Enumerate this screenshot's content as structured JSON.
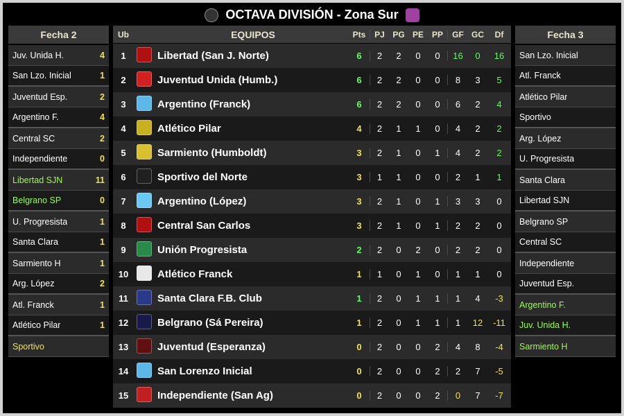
{
  "header": {
    "title": "OCTAVA DIVISIÓN - Zona Sur",
    "logo_left_bg": "#333333",
    "logo_right_bg": "#a040a0"
  },
  "colors": {
    "panel_bg": "#000000",
    "header_bg": "#3a3a3a",
    "row_bg_a": "#2b2b2b",
    "row_bg_b": "#1a1a1a",
    "text": "#ffffff",
    "accent_yellow": "#f2e14a",
    "accent_green": "#5fff5f",
    "highlight_team": "#9aff4a",
    "header_text": "#e8e4d0"
  },
  "fecha2": {
    "title": "Fecha 2",
    "matches": [
      {
        "home": "Juv. Unida H.",
        "home_score": "4",
        "away": "San Lzo. Inicial",
        "away_score": "1"
      },
      {
        "home": "Juventud Esp.",
        "home_score": "2",
        "away": "Argentino F.",
        "away_score": "4"
      },
      {
        "home": "Central SC",
        "home_score": "2",
        "away": "Independiente",
        "away_score": "0"
      },
      {
        "home": "Libertad SJN",
        "home_score": "11",
        "away": "Belgrano SP",
        "away_score": "0",
        "home_hl": true,
        "away_hl": true
      },
      {
        "home": "U. Progresista",
        "home_score": "1",
        "away": "Santa Clara",
        "away_score": "1"
      },
      {
        "home": "Sarmiento H",
        "home_score": "1",
        "away": "Arg. López",
        "away_score": "2"
      },
      {
        "home": "Atl. Franck",
        "home_score": "1",
        "away": "Atlético Pilar",
        "away_score": "1"
      },
      {
        "home": "Sportivo",
        "home_score": "",
        "away": "",
        "away_score": "",
        "home_hl_yellow": true,
        "single": true
      }
    ]
  },
  "fecha3": {
    "title": "Fecha 3",
    "matches": [
      {
        "home": "San Lzo. Inicial",
        "away": "Atl. Franck"
      },
      {
        "home": "Atlético Pilar",
        "away": "Sportivo"
      },
      {
        "home": "Arg. López",
        "away": "U. Progresista"
      },
      {
        "home": "Santa Clara",
        "away": "Libertad SJN"
      },
      {
        "home": "Belgrano SP",
        "away": "Central SC"
      },
      {
        "home": "Independiente",
        "away": "Juventud Esp."
      },
      {
        "home": "Argentino F.",
        "away": "Juv. Unida H.",
        "home_hl": true,
        "away_hl": true
      },
      {
        "home": "Sarmiento H",
        "away": "",
        "home_hl": true,
        "single": true
      }
    ]
  },
  "standings": {
    "columns": {
      "ub": "Ub",
      "team": "EQUIPOS",
      "pts": "Pts",
      "pj": "PJ",
      "pg": "PG",
      "pe": "PE",
      "pp": "PP",
      "gf": "GF",
      "gc": "GC",
      "df": "Df"
    },
    "rows": [
      {
        "ub": "1",
        "team": "Libertad (San J. Norte)",
        "pts": "6",
        "pts_c": "pos",
        "pj": "2",
        "pg": "2",
        "pe": "0",
        "pp": "0",
        "gf": "16",
        "gf_c": "pos",
        "gc": "0",
        "gc_c": "pos",
        "df": "16",
        "df_c": "pos",
        "crest": "#b01010"
      },
      {
        "ub": "2",
        "team": "Juventud Unida (Humb.)",
        "pts": "6",
        "pts_c": "pos",
        "pj": "2",
        "pg": "2",
        "pe": "0",
        "pp": "0",
        "gf": "8",
        "gc": "3",
        "df": "5",
        "df_c": "pos",
        "crest": "#d02020"
      },
      {
        "ub": "3",
        "team": "Argentino (Franck)",
        "pts": "6",
        "pts_c": "pos",
        "pj": "2",
        "pg": "2",
        "pe": "0",
        "pp": "0",
        "gf": "6",
        "gc": "2",
        "df": "4",
        "df_c": "pos",
        "crest": "#5bb8e8"
      },
      {
        "ub": "4",
        "team": "Atlético Pilar",
        "pts": "4",
        "pts_c": "neg",
        "pj": "2",
        "pg": "1",
        "pe": "1",
        "pp": "0",
        "gf": "4",
        "gc": "2",
        "df": "2",
        "df_c": "pos",
        "crest": "#c8b020"
      },
      {
        "ub": "5",
        "team": "Sarmiento (Humboldt)",
        "pts": "3",
        "pts_c": "neg",
        "pj": "2",
        "pg": "1",
        "pe": "0",
        "pp": "1",
        "gf": "4",
        "gc": "2",
        "df": "2",
        "df_c": "pos",
        "crest": "#d8c030"
      },
      {
        "ub": "6",
        "team": "Sportivo del Norte",
        "pts": "3",
        "pts_c": "neg",
        "pj": "1",
        "pg": "1",
        "pe": "0",
        "pp": "0",
        "gf": "2",
        "gc": "1",
        "df": "1",
        "df_c": "pos",
        "crest": "#202020"
      },
      {
        "ub": "7",
        "team": "Argentino (López)",
        "pts": "3",
        "pts_c": "neg",
        "pj": "2",
        "pg": "1",
        "pe": "0",
        "pp": "1",
        "gf": "3",
        "gc": "3",
        "df": "0",
        "df_c": "zer",
        "crest": "#6bc8f0"
      },
      {
        "ub": "8",
        "team": "Central San Carlos",
        "pts": "3",
        "pts_c": "neg",
        "pj": "2",
        "pg": "1",
        "pe": "0",
        "pp": "1",
        "gf": "2",
        "gc": "2",
        "df": "0",
        "df_c": "zer",
        "crest": "#b01010"
      },
      {
        "ub": "9",
        "team": "Unión Progresista",
        "pts": "2",
        "pts_c": "pos",
        "pj": "2",
        "pg": "0",
        "pe": "2",
        "pp": "0",
        "gf": "2",
        "gc": "2",
        "df": "0",
        "df_c": "zer",
        "crest": "#2a8a4a"
      },
      {
        "ub": "10",
        "team": "Atlético Franck",
        "pts": "1",
        "pts_c": "neg",
        "pj": "1",
        "pg": "0",
        "pe": "1",
        "pp": "0",
        "gf": "1",
        "gc": "1",
        "df": "0",
        "df_c": "zer",
        "crest": "#e8e8e8"
      },
      {
        "ub": "11",
        "team": "Santa Clara F.B. Club",
        "pts": "1",
        "pts_c": "pos",
        "pj": "2",
        "pg": "0",
        "pe": "1",
        "pp": "1",
        "gf": "1",
        "gc": "4",
        "df": "-3",
        "df_c": "neg",
        "crest": "#2a3a8a"
      },
      {
        "ub": "12",
        "team": "Belgrano (Sá Pereira)",
        "pts": "1",
        "pts_c": "neg",
        "pj": "2",
        "pg": "0",
        "pe": "1",
        "pp": "1",
        "gf": "1",
        "gc": "12",
        "gc_c": "neg",
        "df": "-11",
        "df_c": "neg",
        "crest": "#1a1a4a"
      },
      {
        "ub": "13",
        "team": "Juventud (Esperanza)",
        "pts": "0",
        "pts_c": "neg",
        "pj": "2",
        "pg": "0",
        "pe": "0",
        "pp": "2",
        "gf": "4",
        "gc": "8",
        "df": "-4",
        "df_c": "neg",
        "crest": "#601010"
      },
      {
        "ub": "14",
        "team": "San Lorenzo Inicial",
        "pts": "0",
        "pts_c": "neg",
        "pj": "2",
        "pg": "0",
        "pe": "0",
        "pp": "2",
        "gf": "2",
        "gc": "7",
        "df": "-5",
        "df_c": "neg",
        "crest": "#5bb8e8"
      },
      {
        "ub": "15",
        "team": "Independiente (San Ag)",
        "pts": "0",
        "pts_c": "neg",
        "pj": "2",
        "pg": "0",
        "pe": "0",
        "pp": "2",
        "gf": "0",
        "gf_c": "neg",
        "gc": "7",
        "df": "-7",
        "df_c": "neg",
        "crest": "#c02020"
      }
    ]
  }
}
